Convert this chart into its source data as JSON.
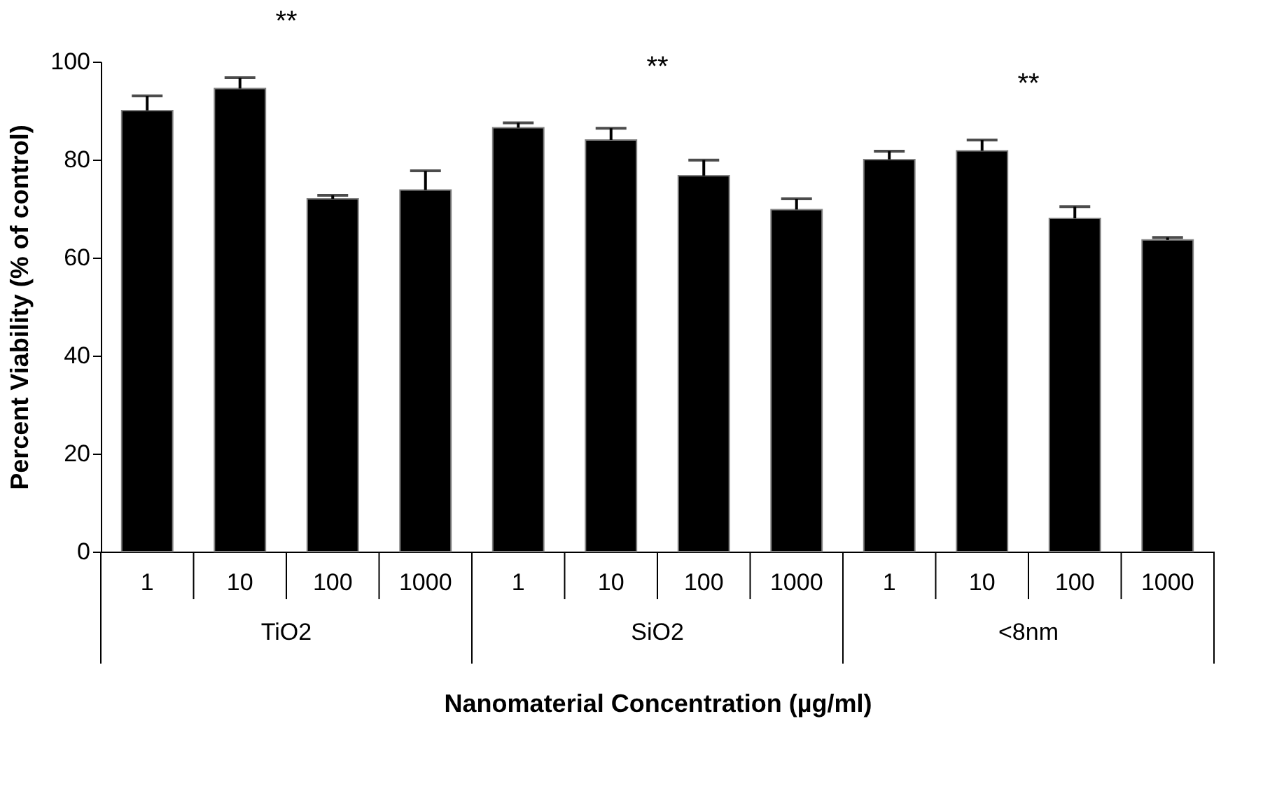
{
  "chart_data": {
    "type": "bar",
    "xlabel": "Nanomaterial Concentration (µg/ml)",
    "ylabel": "Percent Viability (% of control)",
    "categories": [
      "1",
      "10",
      "100",
      "1000",
      "1",
      "10",
      "100",
      "1000",
      "1",
      "10",
      "100",
      "1000"
    ],
    "values": [
      90,
      94.5,
      72,
      73.8,
      86.5,
      84,
      76.7,
      69.8,
      80,
      81.8,
      68,
      63.6
    ],
    "errors": [
      [
        90,
        93
      ],
      [
        94.5,
        96.7
      ],
      [
        72,
        72.7
      ],
      [
        73.8,
        77.7
      ],
      [
        86.5,
        87.5
      ],
      [
        84,
        86.4
      ],
      [
        76.7,
        79.9
      ],
      [
        69.8,
        72
      ],
      [
        80,
        81.7
      ],
      [
        81.8,
        84
      ],
      [
        68,
        70.4
      ],
      [
        63.6,
        64.1
      ]
    ],
    "color": "#000000",
    "ylim": [
      0,
      100
    ],
    "yticks": [
      0,
      20,
      40,
      60,
      80,
      100
    ],
    "grid": false,
    "annotations": [
      "**",
      "**",
      "**",
      "TiO2",
      "SiO2",
      "<8nm"
    ]
  }
}
